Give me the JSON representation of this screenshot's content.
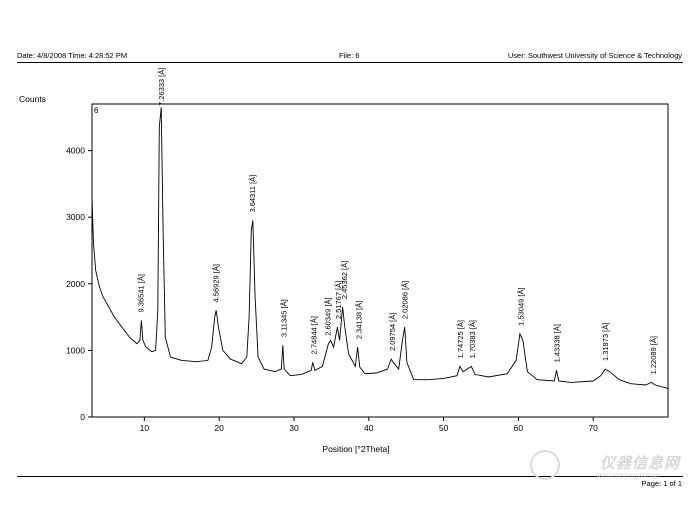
{
  "header": {
    "date_time": "Date: 4/8/2008 Time: 4:28:52 PM",
    "file": "File: 6",
    "user": "User: Southwest University of Science & Technology"
  },
  "footer": {
    "page": "Page: 1 of 1",
    "watermark": "仪器信息网",
    "watermark_url": "www.instrument.com.cn"
  },
  "chart_data": {
    "type": "line",
    "panel_label": "6",
    "ylabel": "Counts",
    "xlabel": "Position [°2Theta]",
    "xlim": [
      3,
      80
    ],
    "ylim": [
      0,
      4700
    ],
    "xticks": [
      10,
      20,
      30,
      40,
      50,
      60,
      70
    ],
    "yticks": [
      0,
      1000,
      2000,
      3000,
      4000
    ],
    "grid": false,
    "series": [
      {
        "points": [
          [
            3.0,
            3300
          ],
          [
            3.2,
            2600
          ],
          [
            3.5,
            2200
          ],
          [
            4.0,
            1950
          ],
          [
            4.5,
            1800
          ],
          [
            5.0,
            1700
          ],
          [
            6.0,
            1500
          ],
          [
            7.0,
            1350
          ],
          [
            8.0,
            1200
          ],
          [
            9.0,
            1100
          ],
          [
            9.4,
            1150
          ],
          [
            9.6,
            1450
          ],
          [
            9.8,
            1150
          ],
          [
            10.2,
            1050
          ],
          [
            11.0,
            980
          ],
          [
            11.5,
            1000
          ],
          [
            11.8,
            1600
          ],
          [
            12.0,
            4350
          ],
          [
            12.25,
            4650
          ],
          [
            12.5,
            2800
          ],
          [
            12.8,
            1200
          ],
          [
            13.5,
            900
          ],
          [
            15.0,
            850
          ],
          [
            17.0,
            830
          ],
          [
            18.5,
            850
          ],
          [
            19.0,
            1050
          ],
          [
            19.4,
            1500
          ],
          [
            19.6,
            1600
          ],
          [
            19.9,
            1350
          ],
          [
            20.5,
            1000
          ],
          [
            21.5,
            870
          ],
          [
            23.0,
            800
          ],
          [
            23.7,
            900
          ],
          [
            24.0,
            1500
          ],
          [
            24.3,
            2800
          ],
          [
            24.5,
            2950
          ],
          [
            24.8,
            1800
          ],
          [
            25.2,
            900
          ],
          [
            26.0,
            720
          ],
          [
            27.5,
            680
          ],
          [
            28.3,
            720
          ],
          [
            28.5,
            1080
          ],
          [
            28.7,
            720
          ],
          [
            29.5,
            620
          ],
          [
            31.0,
            640
          ],
          [
            32.3,
            700
          ],
          [
            32.5,
            820
          ],
          [
            32.8,
            700
          ],
          [
            33.8,
            760
          ],
          [
            34.6,
            1100
          ],
          [
            34.9,
            1150
          ],
          [
            35.3,
            1050
          ],
          [
            35.8,
            1350
          ],
          [
            36.1,
            1150
          ],
          [
            36.5,
            1650
          ],
          [
            36.8,
            1350
          ],
          [
            37.3,
            950
          ],
          [
            38.2,
            760
          ],
          [
            38.5,
            1050
          ],
          [
            38.8,
            750
          ],
          [
            39.5,
            650
          ],
          [
            41.0,
            660
          ],
          [
            42.5,
            720
          ],
          [
            43.0,
            870
          ],
          [
            43.4,
            800
          ],
          [
            44.0,
            720
          ],
          [
            44.5,
            1150
          ],
          [
            44.8,
            1350
          ],
          [
            45.1,
            820
          ],
          [
            46.0,
            560
          ],
          [
            48.0,
            560
          ],
          [
            50.0,
            580
          ],
          [
            51.8,
            620
          ],
          [
            52.2,
            760
          ],
          [
            52.6,
            680
          ],
          [
            53.7,
            760
          ],
          [
            54.2,
            640
          ],
          [
            56.0,
            600
          ],
          [
            58.5,
            650
          ],
          [
            59.7,
            850
          ],
          [
            60.2,
            1250
          ],
          [
            60.6,
            1150
          ],
          [
            61.2,
            680
          ],
          [
            62.5,
            560
          ],
          [
            64.8,
            540
          ],
          [
            65.1,
            700
          ],
          [
            65.4,
            540
          ],
          [
            67.0,
            520
          ],
          [
            70.0,
            540
          ],
          [
            71.0,
            620
          ],
          [
            71.6,
            720
          ],
          [
            72.2,
            680
          ],
          [
            73.5,
            560
          ],
          [
            75.0,
            500
          ],
          [
            77.0,
            480
          ],
          [
            77.8,
            520
          ],
          [
            78.3,
            480
          ],
          [
            80.0,
            430
          ]
        ]
      }
    ],
    "peak_labels": [
      {
        "x": 9.5,
        "text": "9.36541 [Å]"
      },
      {
        "x": 12.25,
        "text": "7.26333 [Å]"
      },
      {
        "x": 19.5,
        "text": "4.56929 [Å]"
      },
      {
        "x": 24.4,
        "text": "3.64311 [Å]"
      },
      {
        "x": 28.6,
        "text": "3.11345 [Å]"
      },
      {
        "x": 32.6,
        "text": "2.74844 [Å]"
      },
      {
        "x": 34.5,
        "text": "2.60349 [Å]"
      },
      {
        "x": 35.9,
        "text": "2.51767 [Å]"
      },
      {
        "x": 36.7,
        "text": "2.45362 [Å]"
      },
      {
        "x": 38.6,
        "text": "2.34138 [Å]"
      },
      {
        "x": 43.1,
        "text": "2.09754 [Å]"
      },
      {
        "x": 44.8,
        "text": "2.02086 [Å]"
      },
      {
        "x": 52.2,
        "text": "1.74725 [Å]"
      },
      {
        "x": 53.8,
        "text": "1.70383 [Å]"
      },
      {
        "x": 60.3,
        "text": "1.53049 [Å]"
      },
      {
        "x": 65.1,
        "text": "1.43338 [Å]"
      },
      {
        "x": 71.6,
        "text": "1.31873 [Å]"
      },
      {
        "x": 78.0,
        "text": "1.22089 [Å]"
      }
    ]
  }
}
